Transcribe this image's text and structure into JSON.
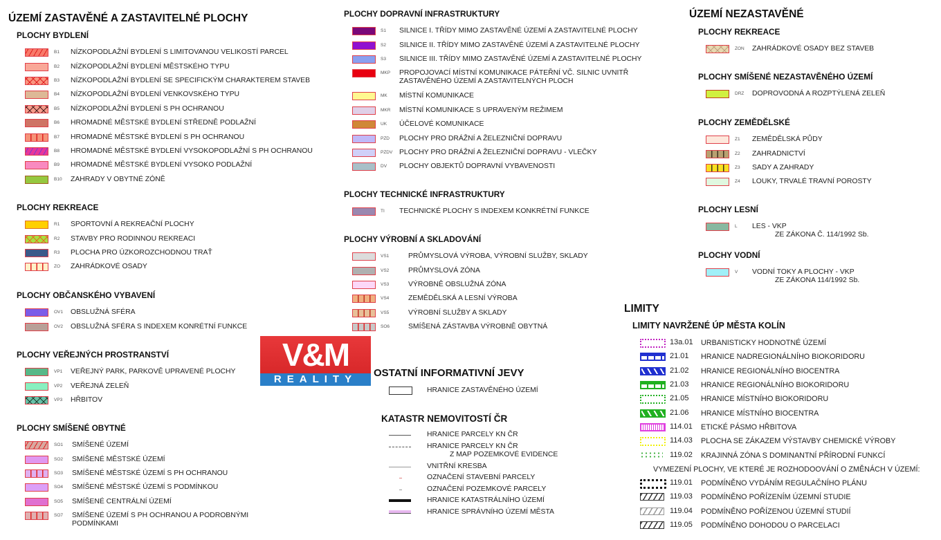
{
  "titles": {
    "zastavene": "ÚZEMÍ ZASTAVĚNÉ A ZASTAVITELNÉ PLOCHY",
    "nezastavene": "ÚZEMÍ NEZASTAVĚNÉ",
    "limity": "LIMITY"
  },
  "logo": {
    "top": "V&M",
    "bottom": "REALITY",
    "red": "#e0302f",
    "blue": "#2a7fc8"
  },
  "sections": [
    {
      "id": "bydleni",
      "heading": "PLOCHY BYDLENÍ",
      "items": [
        {
          "code": "B1",
          "label": "NÍZKOPODLAŽNÍ BYDLENÍ S LIMITOVANOU VELIKOSTÍ PARCEL",
          "fill": "#f87a6a",
          "pattern": "diag",
          "pc": "#e02020"
        },
        {
          "code": "B2",
          "label": "NÍZKOPODLAŽNÍ BYDLENÍ MĚSTSKÉHO TYPU",
          "fill": "#f9a898"
        },
        {
          "code": "B3",
          "label": "NÍZKOPODLAŽNÍ BYDLENÍ  SE SPECIFICKÝM CHARAKTEREM STAVEB",
          "fill": "#f9957f",
          "pattern": "cross",
          "pc": "#e02020"
        },
        {
          "code": "B4",
          "label": "NÍZKOPODLAŽNÍ BYDLENÍ VENKOVSKÉHO TYPU",
          "fill": "#ddb896"
        },
        {
          "code": "B5",
          "label": "NÍZKOPODLAŽNÍ BYDLENÍ S PH OCHRANOU",
          "fill": "#f59b8a",
          "pattern": "cross",
          "pc": "#502020"
        },
        {
          "code": "B6",
          "label": "HROMADNÉ MĚSTSKÉ BYDLENÍ STŘEDNĚ PODLAŽNÍ",
          "fill": "#cf7465"
        },
        {
          "code": "B7",
          "label": "HROMADNÉ MĚSTSKÉ BYDLENÍ S PH OCHRANOU",
          "fill": "#f59378",
          "pattern": "vlines",
          "pc": "#e02020"
        },
        {
          "code": "B8",
          "label": "HROMADNÉ MĚSTSKÉ BYDLENÍ VYSOKOPODLAŽNÍ S PH OCHRANOU",
          "fill": "#e8359a",
          "pattern": "diag",
          "pc": "#7a3ad0"
        },
        {
          "code": "B9",
          "label": "HROMADNÉ MĚSTSKÉ BYDLENÍ VYSOKO PODLAŽNÍ",
          "fill": "#f98ac0"
        },
        {
          "code": "B10",
          "label": "ZAHRADY V OBYTNÉ ZÓNĚ",
          "fill": "#95c840",
          "border": "#a06020"
        }
      ]
    },
    {
      "id": "rekreace",
      "heading": "PLOCHY REKREACE",
      "items": [
        {
          "code": "R1",
          "label": "SPORTOVNÍ A REKREAČNÍ PLOCHY",
          "fill": "#ffd000",
          "border": "#e07020"
        },
        {
          "code": "R2",
          "label": "STAVBY PRO RODINNOU REKREACI",
          "fill": "#a8e040",
          "pattern": "cross",
          "pc": "#e07020"
        },
        {
          "code": "R3",
          "label": "PLOCHA PRO ÚZKOROZCHODNOU TRAŤ",
          "fill": "#3a5a8a"
        },
        {
          "code": "ZO",
          "label": "ZAHRÁDKOVÉ OSADY",
          "fill": "#fff1c8",
          "pattern": "vlines",
          "pc": "#e02020"
        }
      ]
    },
    {
      "id": "obcanske",
      "heading": "PLOCHY OBČANSKÉHO VYBAVENÍ",
      "items": [
        {
          "code": "OV1",
          "label": "OBSLUŽNÁ SFÉRA",
          "fill": "#7b5ce8"
        },
        {
          "code": "OV2",
          "label": "OBSLUŽNÁ SFÉRA S INDEXEM KONRÉTNÍ FUNKCE",
          "fill": "#b8a098"
        }
      ]
    },
    {
      "id": "verejne",
      "heading": "PLOCHY VEŘEJNÝCH PROSTRANSTVÍ",
      "items": [
        {
          "code": "VP1",
          "label": "VEŘEJNÝ PARK, PARKOVĚ UPRAVENÉ PLOCHY",
          "fill": "#58b888"
        },
        {
          "code": "VP2",
          "label": "VEŘEJNÁ ZELEŇ",
          "fill": "#88f0c0"
        },
        {
          "code": "VP3",
          "label": "HŘBITOV",
          "fill": "#68c0a8",
          "pattern": "cross",
          "pc": "#204030"
        }
      ]
    },
    {
      "id": "smisene",
      "heading": "PLOCHY SMÍŠENÉ OBYTNÉ",
      "items": [
        {
          "code": "SO1",
          "label": "SMÍŠENÉ ÚZEMÍ",
          "fill": "#d8a8a0",
          "pattern": "diag",
          "pc": "#e02020"
        },
        {
          "code": "SO2",
          "label": "SMÍŠENÉ MĚSTSKÉ ÚZEMÍ",
          "fill": "#e098f0"
        },
        {
          "code": "SO3",
          "label": "SMÍŠENÉ MĚSTSKÉ ÚZEMÍ S PH OCHRANOU",
          "fill": "#e0b0f0",
          "pattern": "vlines",
          "pc": "#e02020"
        },
        {
          "code": "SO4",
          "label": "SMÍŠENÉ MĚSTSKÉ ÚZEMÍ S PODMÍNKOU",
          "fill": "#dca0f8"
        },
        {
          "code": "SO5",
          "label": "SMÍŠENÉ CENTRÁLNÍ ÚZEMÍ",
          "fill": "#e070d0"
        },
        {
          "code": "SO7",
          "label": "SMÍŠENÉ ÚZEMÍ S PH OCHRANOU A PODROBNÝMI",
          "label2": "PODMÍNKAMI",
          "fill": "#e0b0b0",
          "pattern": "vlines",
          "pc": "#e02020"
        }
      ]
    },
    {
      "id": "dopravni",
      "heading": "PLOCHY DOPRAVNÍ INFRASTRUKTURY",
      "items": [
        {
          "code": "S1",
          "label": "SILNICE I. TŘÍDY MIMO ZASTAVĚNÉ ÚZEMÍ A ZASTAVITELNÉ PLOCHY",
          "fill": "#7a0878"
        },
        {
          "code": "S2",
          "label": "SILNICE II. TŘÍDY MIMO ZASTAVĚNÉ ÚZEMÍ A ZASTAVITELNÉ PLOCHY",
          "fill": "#9010d0"
        },
        {
          "code": "S3",
          "label": "SILNICE III. TŘÍDY MIMO ZASTAVĚNÉ ÚZEMÍ A ZASTAVITELNÉ PLOCHY",
          "fill": "#8aa0f0"
        },
        {
          "code": "MKP",
          "label": "PROPOJOVACÍ MÍSTNÍ KOMUNIKACE PÁTEŘNÍ VČ. SILNIC UVNITŘ",
          "label2": "ZASTAVĚNÉHO ÚZEMÍ A ZASTAVITELNÝCH PLOCH",
          "fill": "#e80010"
        },
        {
          "code": "MK",
          "label": "MÍSTNÍ KOMUNIKACE",
          "fill": "#fff890"
        },
        {
          "code": "MKR",
          "label": "MÍSTNÍ KOMUNIKACE S UPRAVENÝM REŽIMEM",
          "fill": "#e0d0e8"
        },
        {
          "code": "UK",
          "label": "ÚČELOVÉ KOMUNIKACE",
          "fill": "#d08838"
        },
        {
          "code": "PZD",
          "label": "PLOCHY PRO DRÁŽNÍ A ŽELEZNIČNÍ DOPRAVU",
          "fill": "#c0b8f8"
        },
        {
          "code": "PZDV",
          "label": "PLOCHY PRO DRÁŽNÍ A ŽELEZNIČNÍ DOPRAVU - VLEČKY",
          "fill": "#d0d0f8"
        },
        {
          "code": "DV",
          "label": "PLOCHY OBJEKTŮ DOPRAVNÍ VYBAVENOSTI",
          "fill": "#a8c0c8"
        }
      ]
    },
    {
      "id": "technicke",
      "heading": "PLOCHY TECHNICKÉ INFRASTRUKTURY",
      "items": [
        {
          "code": "TI",
          "label": "TECHNICKÉ PLOCHY S INDEXEM KONKRÉTNÍ FUNKCE",
          "fill": "#9a88b0"
        }
      ]
    },
    {
      "id": "vyrobni",
      "heading": "PLOCHY VÝROBNÍ A SKLADOVÁNÍ",
      "items": [
        {
          "code": "VS1",
          "label": "PRŮMYSLOVÁ VÝROBA, VÝROBNÍ SLUŽBY, SKLADY",
          "fill": "#dcdcdc"
        },
        {
          "code": "VS2",
          "label": "PRŮMYSLOVÁ ZÓNA",
          "fill": "#b0b0b0"
        },
        {
          "code": "VS3",
          "label": "VÝROBNĚ OBSLUŽNÁ ZÓNA",
          "fill": "#fcd8f8"
        },
        {
          "code": "VS4",
          "label": "ZEMĚDĚLSKÁ A LESNÍ VÝROBA",
          "fill": "#f0b080",
          "pattern": "vlines",
          "pc": "#c03020"
        },
        {
          "code": "VS5",
          "label": "VÝROBNÍ SLUŽBY A SKLADY",
          "fill": "#e8c098",
          "pattern": "vlines",
          "pc": "#c03020"
        },
        {
          "code": "SO6",
          "label": "SMÍŠENÁ ZÁSTAVBA VÝROBNĚ OBYTNÁ",
          "fill": "#c8c8c8",
          "pattern": "vlines",
          "pc": "#e02020"
        }
      ]
    },
    {
      "id": "ostatni",
      "heading": "OSTATNÍ INFORMATIVNÍ JEVY",
      "items": [
        {
          "label": "HRANICE ZASTAVĚNÉHO ÚZEMÍ",
          "symbol": "outline",
          "fill": "#ffffff",
          "border": "#333333"
        }
      ]
    },
    {
      "id": "katastr",
      "heading": "KATASTR NEMOVITOSTÍ ČR",
      "items": [
        {
          "label": "HRANICE PARCELY KN ČR",
          "symbol": "line",
          "border": "#555555"
        },
        {
          "label": "HRANICE PARCELY KN ČR",
          "label2": "Z MAP POZEMKOVÉ EVIDENCE",
          "symbol": "dashline",
          "border": "#555555"
        },
        {
          "label": "VNITŘNÍ KRESBA",
          "symbol": "line",
          "border": "#999999"
        },
        {
          "label": "OZNAČENÍ STAVEBNÍ PARCELY",
          "symbol": "tick",
          "border": "#e08080"
        },
        {
          "label": "OZNAČENÍ POZEMKOVÉ PARCELY",
          "symbol": "tick",
          "border": "#999999"
        },
        {
          "label": "HRANICE KATASTRÁLNÍHO ÚZEMÍ",
          "symbol": "squares",
          "border": "#111111"
        },
        {
          "label": "HRANICE SPRÁVNÍHO ÚZEMÍ MĚSTA",
          "symbol": "band",
          "fill": "#e8b8f0",
          "border": "#555555"
        }
      ]
    },
    {
      "id": "nez-rekreace",
      "heading": "PLOCHY REKREACE",
      "items": [
        {
          "code": "ZON",
          "label": "ZAHRÁDKOVÉ OSADY BEZ STAVEB",
          "fill": "#e8d8b0",
          "pattern": "cross",
          "pc": "#c0a080"
        }
      ]
    },
    {
      "id": "nez-smisene",
      "heading": "PLOCHY SMÍŠENÉ NEZASTAVĚNÉHO ÚZEMÍ",
      "items": [
        {
          "code": "DRZ",
          "label": "DOPROVODNÁ A ROZPTÝLENÁ ZELEŇ",
          "fill": "#d0f040",
          "border": "#c04020"
        }
      ]
    },
    {
      "id": "zemedelske",
      "heading": "PLOCHY ZEMĚDĚLSKÉ",
      "items": [
        {
          "code": "Z1",
          "label": "ZEMĚDĚLSKÁ PŮDY",
          "fill": "#fde8dc"
        },
        {
          "code": "Z2",
          "label": "ZAHRADNICTVÍ",
          "fill": "#b8a070",
          "pattern": "vlines",
          "pc": "#403020"
        },
        {
          "code": "Z3",
          "label": "SADY A ZAHRADY",
          "fill": "#f8e020",
          "pattern": "vlines",
          "pc": "#403020"
        },
        {
          "code": "Z4",
          "label": "LOUKY, TRVALÉ TRAVNÍ POROSTY",
          "fill": "#e0f8e0"
        }
      ]
    },
    {
      "id": "lesni",
      "heading": "PLOCHY LESNÍ",
      "items": [
        {
          "code": "L",
          "label": "LES - VKP",
          "label2": "ZE ZÁKONA Č. 114/1992 Sb.",
          "indent2": true,
          "fill": "#88b8a0"
        }
      ]
    },
    {
      "id": "vodni",
      "heading": "PLOCHY VODNÍ",
      "items": [
        {
          "code": "V",
          "label": "VODNÍ TOKY A PLOCHY - VKP",
          "label2": "ZE ZÁKONA 114/1992 Sb.",
          "indent2": true,
          "fill": "#a0f0f8"
        }
      ]
    },
    {
      "id": "limity",
      "heading": "LIMITY NAVRŽENÉ ÚP MĚSTA KOLÍN",
      "items": [
        {
          "code": "13a.01",
          "label": "URBANISTICKY HODNOTNÉ ÚZEMÍ",
          "symbol": "dotbox",
          "border": "#c020c0"
        },
        {
          "code": "21.01",
          "label": "HRANICE NADREGIONÁLNÍHO BIOKORIDORU",
          "symbol": "crenel",
          "border": "#2030d0"
        },
        {
          "code": "21.02",
          "label": "HRANICE REGIONÁLNÍHO BIOCENTRA",
          "symbol": "wave",
          "border": "#2030d0"
        },
        {
          "code": "21.03",
          "label": "HRANICE REGIONÁLNÍHO BIOKORIDORU",
          "symbol": "crenel",
          "border": "#20b020"
        },
        {
          "code": "21.05",
          "label": "HRANICE MÍSTNÍHO BIOKORIDORU",
          "symbol": "dotbox",
          "border": "#20b020"
        },
        {
          "code": "21.06",
          "label": "HRANICE MÍSTNÍHO BIOCENTRA",
          "symbol": "wave",
          "border": "#20b020"
        },
        {
          "code": "114.01",
          "label": "ETICKÉ PÁSMO HŘBITOVA",
          "symbol": "hatch",
          "border": "#e040e0"
        },
        {
          "code": "114.03",
          "label": "PLOCHA SE ZÁKAZEM VÝSTAVBY CHEMICKÉ VÝROBY",
          "symbol": "dotbox",
          "border": "#f0f000"
        },
        {
          "code": "119.02",
          "label": "KRAJINNÁ ZÓNA S DOMINANTNÍ PŘÍRODNÍ FUNKCÍ",
          "symbol": "dots",
          "border": "#40b040"
        },
        {
          "note": "VYMEZENÍ PLOCHY, VE KTERÉ JE ROZHODOOVÁNÍ O ZMĚNÁCH V ÚZEMÍ:"
        },
        {
          "code": "119.01",
          "label": "PODMÍNĚNO VYDÁNÍM REGULAČNÍHO PLÁNU",
          "symbol": "dotbox-thick",
          "border": "#111111"
        },
        {
          "code": "119.03",
          "label": "PODMÍNĚNO POŘÍZENÍM ÚZEMNÍ STUDIE",
          "symbol": "diagbox",
          "border": "#333333"
        },
        {
          "code": "119.04",
          "label": "PODMÍNĚNO POŘÍZENOU ÚZEMNÍ STUDIÍ",
          "symbol": "diagbox",
          "border": "#999999"
        },
        {
          "code": "119.05",
          "label": "PODMÍNĚNO DOHODOU O PARCELACI",
          "symbol": "diagbox",
          "border": "#333333"
        }
      ]
    }
  ]
}
